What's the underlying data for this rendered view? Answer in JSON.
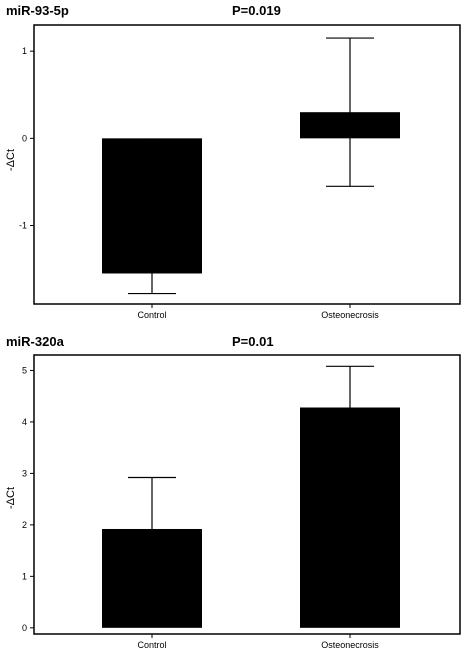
{
  "chart_data": [
    {
      "type": "bar",
      "title": "miR-93-5p",
      "pvalue": "P=0.019",
      "ylabel": "-ΔCt",
      "xlabel": "",
      "categories": [
        "Control",
        "Osteonecrosis"
      ],
      "values": [
        -1.55,
        0.3
      ],
      "error_high": [
        0.0,
        1.15
      ],
      "error_low": [
        -1.78,
        -0.55
      ],
      "ylim": [
        -1.9,
        1.3
      ],
      "yticks": [
        -1,
        0,
        1
      ],
      "ytick_labels": [
        "-1",
        "0",
        "1"
      ],
      "grid": false
    },
    {
      "type": "bar",
      "title": "miR-320a",
      "pvalue": "P=0.01",
      "ylabel": "-ΔCt",
      "xlabel": "",
      "categories": [
        "Control",
        "Osteonecrosis"
      ],
      "values": [
        1.92,
        4.28
      ],
      "error_high": [
        2.92,
        5.08
      ],
      "error_low": [
        1.92,
        4.28
      ],
      "ylim": [
        -0.12,
        5.3
      ],
      "yticks": [
        0,
        1,
        2,
        3,
        4,
        5
      ],
      "ytick_labels": [
        "0",
        "1",
        "2",
        "3",
        "4",
        "5"
      ],
      "grid": false
    }
  ]
}
